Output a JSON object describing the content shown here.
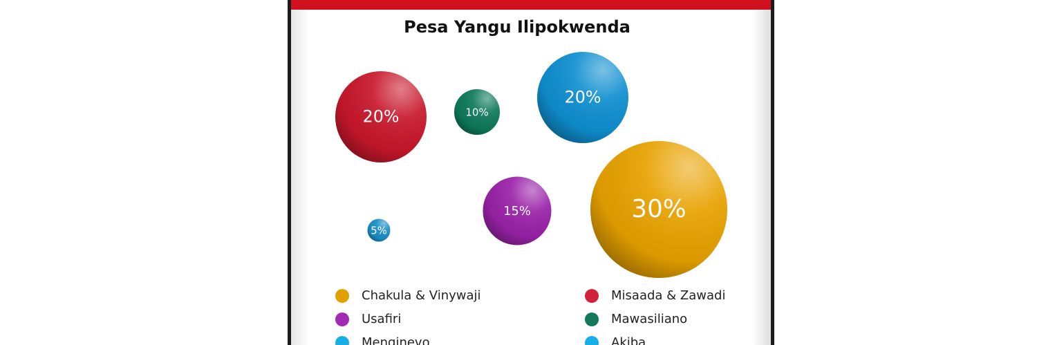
{
  "chart_data": {
    "type": "bubble",
    "title": "Pesa Yangu Ilipokwenda",
    "categories": [
      "Chakula & Vinywaji",
      "Misaada & Zawadi",
      "Usafiri",
      "Mawasiliano",
      "Menginevo",
      "Akiba"
    ],
    "values": [
      30,
      20,
      15,
      10,
      5,
      20
    ],
    "value_labels": [
      "30%",
      "20%",
      "15%",
      "10%",
      "5%",
      "20%"
    ],
    "colors": [
      "#e8a200",
      "#c8172b",
      "#9a22a8",
      "#0e7a5a",
      "#1a8fc8",
      "#0f8fd0"
    ],
    "legend_colors": [
      "#e0a000",
      "#d0223a",
      "#a32ab5",
      "#127a5c",
      "#17aee8",
      "#17aee8"
    ]
  }
}
